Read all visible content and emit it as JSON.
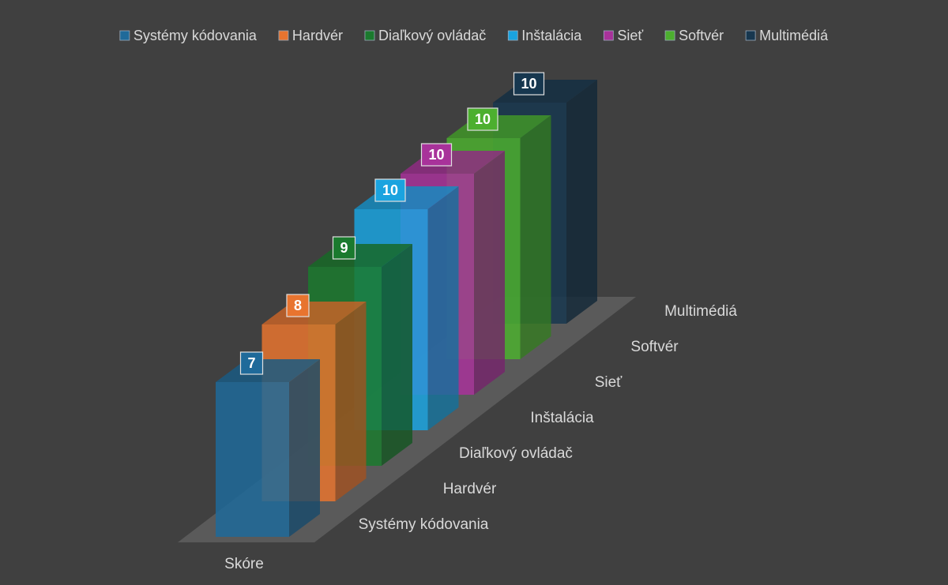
{
  "chart_data": {
    "type": "bar3d",
    "categories": [
      "Skóre"
    ],
    "series": [
      {
        "name": "Systémy kódovania",
        "color": "#1f6a9a",
        "values": [
          7
        ]
      },
      {
        "name": "Hardvér",
        "color": "#e8742f",
        "values": [
          8
        ]
      },
      {
        "name": "Diaľkový ovládač",
        "color": "#1b7a2e",
        "values": [
          9
        ]
      },
      {
        "name": "Inštalácia",
        "color": "#1aa3df",
        "values": [
          10
        ]
      },
      {
        "name": "Sieť",
        "color": "#a8329a",
        "values": [
          10
        ]
      },
      {
        "name": "Softvér",
        "color": "#4caf2f",
        "values": [
          10
        ]
      },
      {
        "name": "Multimédiá",
        "color": "#17374f",
        "values": [
          10
        ]
      }
    ],
    "legend": "top",
    "grid": false
  }
}
